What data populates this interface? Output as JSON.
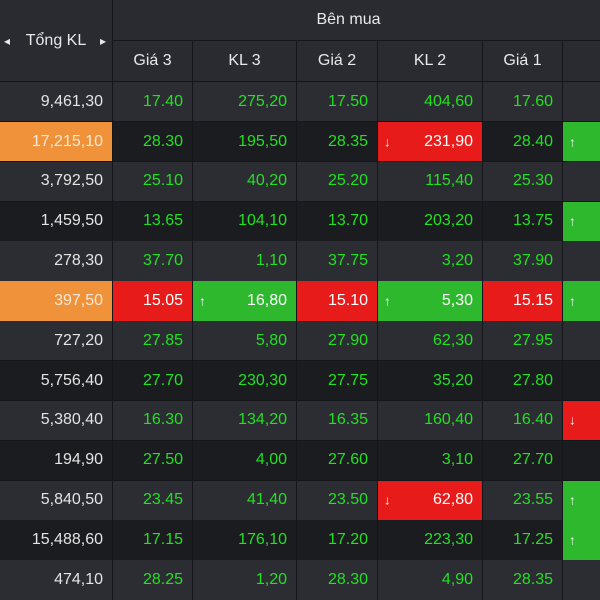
{
  "header": {
    "group": "Bên mua",
    "total": "Tổng KL",
    "columns": [
      "Giá 3",
      "KL 3",
      "Giá 2",
      "KL 2",
      "Giá 1"
    ]
  },
  "table": {
    "rows": [
      [
        "9,461,30",
        "17.40",
        "275,20",
        "17.50",
        "404,60",
        "17.60"
      ],
      [
        "17,215,10",
        "28.30",
        "195,50",
        "28.35",
        "231,90",
        "28.40"
      ],
      [
        "3,792,50",
        "25.10",
        "40,20",
        "25.20",
        "115,40",
        "25.30"
      ],
      [
        "1,459,50",
        "13.65",
        "104,10",
        "13.70",
        "203,20",
        "13.75"
      ],
      [
        "278,30",
        "37.70",
        "1,10",
        "37.75",
        "3,20",
        "37.90"
      ],
      [
        "397,50",
        "15.05",
        "16,80",
        "15.10",
        "5,30",
        "15.15"
      ],
      [
        "727,20",
        "27.85",
        "5,80",
        "27.90",
        "62,30",
        "27.95"
      ],
      [
        "5,756,40",
        "27.70",
        "230,30",
        "27.75",
        "35,20",
        "27.80"
      ],
      [
        "5,380,40",
        "16.30",
        "134,20",
        "16.35",
        "160,40",
        "16.40"
      ],
      [
        "194,90",
        "27.50",
        "4,00",
        "27.60",
        "3,10",
        "27.70"
      ],
      [
        "5,840,50",
        "23.45",
        "41,40",
        "23.50",
        "62,80",
        "23.55"
      ],
      [
        "15,488,60",
        "17.15",
        "176,10",
        "17.20",
        "223,30",
        "17.25"
      ],
      [
        "474,10",
        "28.25",
        "1,20",
        "28.30",
        "4,90",
        "28.35"
      ]
    ]
  }
}
